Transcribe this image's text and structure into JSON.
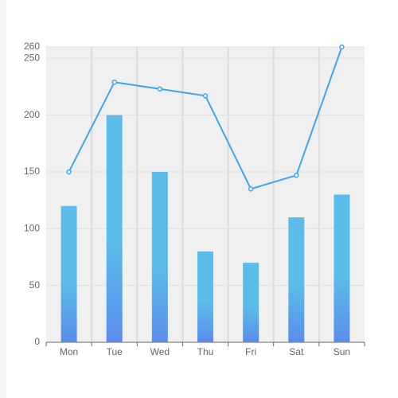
{
  "chart_data": {
    "type": "bar",
    "categories": [
      "Mon",
      "Tue",
      "Wed",
      "Thu",
      "Fri",
      "Sat",
      "Sun"
    ],
    "series": [
      {
        "type": "bar",
        "color": "#5bbde9",
        "color_bottom": "#5a8cec",
        "values": [
          120,
          200,
          150,
          80,
          70,
          110,
          130
        ]
      },
      {
        "type": "line",
        "color": "#3ea6ee",
        "values": [
          150,
          229,
          223,
          217,
          135,
          147,
          260
        ]
      }
    ],
    "ylim": [
      0,
      260
    ],
    "yticks": [
      0,
      50,
      100,
      150,
      200,
      250,
      260
    ],
    "grid": true
  }
}
